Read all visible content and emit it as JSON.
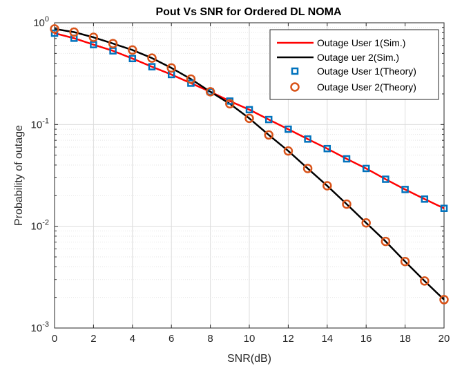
{
  "chart_data": {
    "type": "line",
    "title": "Pout Vs SNR for Ordered DL NOMA",
    "xlabel": "SNR(dB)",
    "ylabel": "Probability of outage",
    "xlim": [
      0,
      20
    ],
    "ylim": [
      0.001,
      1
    ],
    "yscale": "log",
    "grid": true,
    "legend_position": "top-right",
    "x_ticks": [
      "0",
      "2",
      "4",
      "6",
      "8",
      "10",
      "12",
      "14",
      "16",
      "18",
      "20"
    ],
    "y_ticks": [
      {
        "base": "10",
        "exp": "0"
      },
      {
        "base": "10",
        "exp": "-1"
      },
      {
        "base": "10",
        "exp": "-2"
      },
      {
        "base": "10",
        "exp": "-3"
      }
    ],
    "x": [
      0,
      1,
      2,
      3,
      4,
      5,
      6,
      7,
      8,
      9,
      10,
      11,
      12,
      13,
      14,
      15,
      16,
      17,
      18,
      19,
      20
    ],
    "series": [
      {
        "name": "Outage User 1(Sim.)",
        "kind": "line",
        "color": "#ff0000",
        "values": [
          0.79,
          0.705,
          0.61,
          0.53,
          0.445,
          0.37,
          0.31,
          0.255,
          0.21,
          0.17,
          0.14,
          0.112,
          0.09,
          0.072,
          0.058,
          0.046,
          0.037,
          0.029,
          0.023,
          0.0185,
          0.015
        ]
      },
      {
        "name": "Outage uer 2(Sim.)",
        "kind": "line",
        "color": "#000000",
        "values": [
          0.87,
          0.81,
          0.72,
          0.625,
          0.54,
          0.45,
          0.36,
          0.28,
          0.21,
          0.16,
          0.115,
          0.079,
          0.055,
          0.037,
          0.025,
          0.0165,
          0.0108,
          0.0071,
          0.0045,
          0.0029,
          0.0019
        ]
      },
      {
        "name": "Outage User 1(Theory)",
        "kind": "marker-square",
        "color": "#0072bd",
        "values": [
          0.79,
          0.705,
          0.61,
          0.53,
          0.445,
          0.37,
          0.31,
          0.255,
          0.21,
          0.17,
          0.14,
          0.112,
          0.09,
          0.072,
          0.058,
          0.046,
          0.037,
          0.029,
          0.023,
          0.0185,
          0.015
        ]
      },
      {
        "name": "Outage User 2(Theory)",
        "kind": "marker-circle",
        "color": "#d95319",
        "values": [
          0.87,
          0.81,
          0.72,
          0.625,
          0.54,
          0.45,
          0.36,
          0.28,
          0.21,
          0.16,
          0.115,
          0.079,
          0.055,
          0.037,
          0.025,
          0.0165,
          0.0108,
          0.0071,
          0.0045,
          0.0029,
          0.0019
        ]
      }
    ]
  }
}
